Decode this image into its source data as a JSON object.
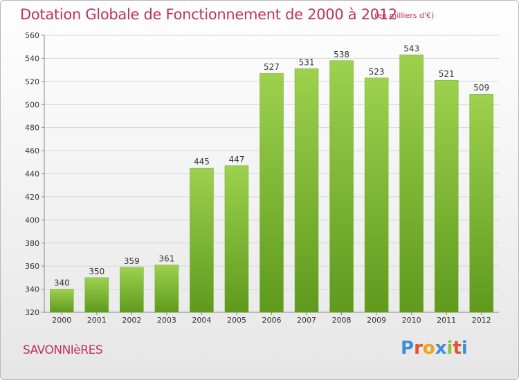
{
  "header": {
    "title": "Dotation Globale de Fonctionnement de 2000 à 2012",
    "subtitle": "(en milliers d'€)"
  },
  "footer": {
    "commune": "SAVONNIèRES",
    "logo_text": "Proxiti",
    "logo_colors": [
      "#3a8fd6",
      "#e8502a",
      "#f2a21b",
      "#3a8fd6",
      "#8bc13f",
      "#e8502a",
      "#3a8fd6"
    ]
  },
  "colors": {
    "bar_top": "#9dd14e",
    "bar_bottom": "#5f9a1d",
    "grid": "#d6d6d6",
    "axis": "#888888"
  },
  "chart_data": {
    "type": "bar",
    "categories": [
      "2000",
      "2001",
      "2002",
      "2003",
      "2004",
      "2005",
      "2006",
      "2007",
      "2008",
      "2009",
      "2010",
      "2011",
      "2012"
    ],
    "values": [
      340,
      350,
      359,
      361,
      445,
      447,
      527,
      531,
      538,
      523,
      543,
      521,
      509
    ],
    "ylim": [
      320,
      560
    ],
    "yticks": [
      320,
      340,
      360,
      380,
      400,
      420,
      440,
      460,
      480,
      500,
      520,
      540,
      560
    ],
    "grid": true,
    "title": "Dotation Globale de Fonctionnement de 2000 à 2012",
    "xlabel": "",
    "ylabel": ""
  }
}
